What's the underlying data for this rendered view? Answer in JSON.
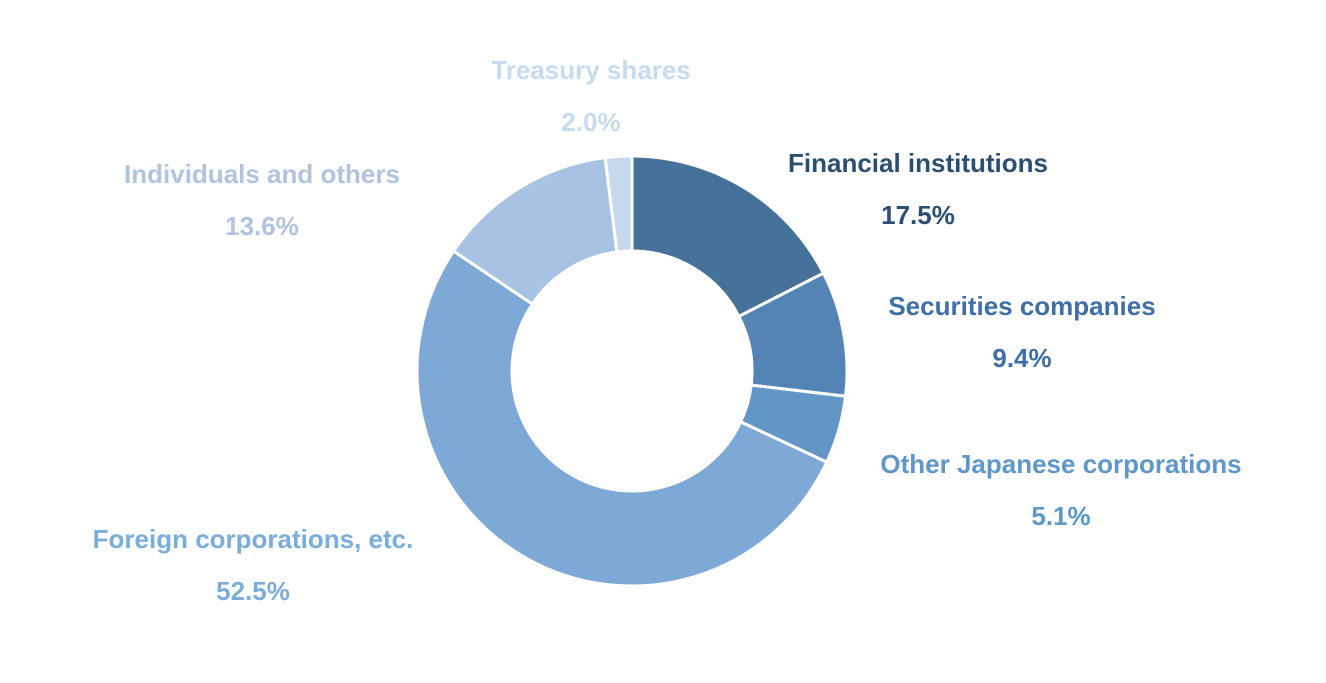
{
  "chart_data": {
    "type": "pie",
    "variant": "donut",
    "title": "",
    "slices": [
      {
        "label": "Financial institutions",
        "value": 17.5,
        "display": "17.5%",
        "color": "#46729a",
        "label_color": "#2b4f72"
      },
      {
        "label": "Securities companies",
        "value": 9.4,
        "display": "9.4%",
        "color": "#5484b6",
        "label_color": "#3e6fa6"
      },
      {
        "label": "Other Japanese corporations",
        "value": 5.1,
        "display": "5.1%",
        "color": "#6296c6",
        "label_color": "#5d97cc"
      },
      {
        "label": "Foreign corporations, etc.",
        "value": 52.5,
        "display": "52.5%",
        "color": "#7ea9d6",
        "label_color": "#7aaddb"
      },
      {
        "label": "Individuals and others",
        "value": 13.6,
        "display": "13.6%",
        "color": "#a7c2e2",
        "label_color": "#b1c3df"
      },
      {
        "label": "Treasury shares",
        "value": 2.0,
        "display": "2.0%",
        "color": "#c6d8ec",
        "label_color": "#c5dcf0"
      }
    ],
    "start_angle_deg": 0,
    "direction": "clockwise",
    "legend": "none"
  }
}
